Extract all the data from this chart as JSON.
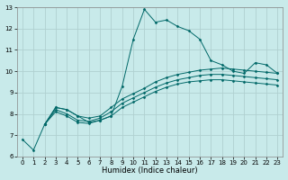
{
  "title": "",
  "xlabel": "Humidex (Indice chaleur)",
  "bg_color": "#c8eaea",
  "grid_color": "#b0d0d0",
  "line_color": "#006868",
  "xlim": [
    -0.5,
    23.5
  ],
  "ylim": [
    6,
    13
  ],
  "xticks": [
    0,
    1,
    2,
    3,
    4,
    5,
    6,
    7,
    8,
    9,
    10,
    11,
    12,
    13,
    14,
    15,
    16,
    17,
    18,
    19,
    20,
    21,
    22,
    23
  ],
  "yticks": [
    6,
    7,
    8,
    9,
    10,
    11,
    12,
    13
  ],
  "series": [
    {
      "x": [
        0,
        1,
        2,
        3,
        4,
        5,
        6,
        7,
        8,
        9,
        10,
        11,
        12,
        13,
        14,
        15,
        16,
        17,
        18,
        19,
        20,
        21,
        22,
        23
      ],
      "y": [
        6.8,
        6.3,
        7.5,
        8.3,
        8.2,
        7.9,
        7.6,
        7.7,
        7.9,
        9.3,
        11.5,
        12.9,
        12.3,
        12.4,
        12.1,
        11.9,
        11.5,
        10.5,
        10.3,
        10.0,
        9.9,
        10.4,
        10.3,
        9.9
      ]
    },
    {
      "x": [
        2,
        3,
        4,
        5,
        6,
        7,
        8,
        9,
        10,
        11,
        12,
        13,
        14,
        15,
        16,
        17,
        18,
        19,
        20,
        21,
        22,
        23
      ],
      "y": [
        7.5,
        8.3,
        8.2,
        7.9,
        7.8,
        7.9,
        8.3,
        8.7,
        8.95,
        9.2,
        9.5,
        9.7,
        9.85,
        9.95,
        10.05,
        10.1,
        10.15,
        10.1,
        10.05,
        10.0,
        9.95,
        9.9
      ]
    },
    {
      "x": [
        2,
        3,
        4,
        5,
        6,
        7,
        8,
        9,
        10,
        11,
        12,
        13,
        14,
        15,
        16,
        17,
        18,
        19,
        20,
        21,
        22,
        23
      ],
      "y": [
        7.5,
        8.2,
        8.0,
        7.7,
        7.65,
        7.8,
        8.1,
        8.5,
        8.75,
        9.0,
        9.25,
        9.45,
        9.6,
        9.7,
        9.8,
        9.85,
        9.85,
        9.8,
        9.75,
        9.7,
        9.65,
        9.6
      ]
    },
    {
      "x": [
        2,
        3,
        4,
        5,
        6,
        7,
        8,
        9,
        10,
        11,
        12,
        13,
        14,
        15,
        16,
        17,
        18,
        19,
        20,
        21,
        22,
        23
      ],
      "y": [
        7.5,
        8.1,
        7.9,
        7.6,
        7.55,
        7.7,
        7.9,
        8.3,
        8.55,
        8.8,
        9.05,
        9.25,
        9.4,
        9.5,
        9.55,
        9.6,
        9.6,
        9.55,
        9.5,
        9.45,
        9.4,
        9.35
      ]
    }
  ]
}
